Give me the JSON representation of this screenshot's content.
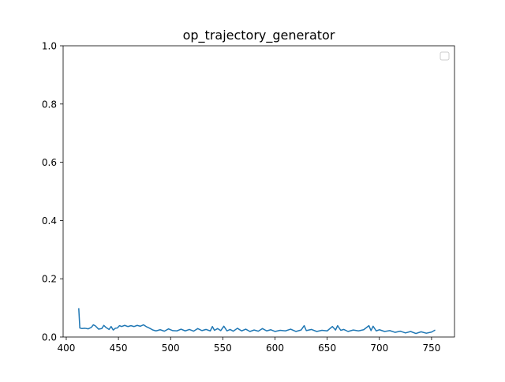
{
  "chart_data": {
    "type": "line",
    "title": "op_trajectory_generator",
    "xlabel": "",
    "ylabel": "",
    "xlim": [
      397,
      772
    ],
    "ylim": [
      0,
      1.0
    ],
    "xticks": [
      400,
      450,
      500,
      550,
      600,
      650,
      700,
      750
    ],
    "yticks": [
      0.0,
      0.2,
      0.4,
      0.6,
      0.8,
      1.0
    ],
    "xtick_labels": [
      "400",
      "450",
      "500",
      "550",
      "600",
      "650",
      "700",
      "750"
    ],
    "ytick_labels": [
      "0.0",
      "0.2",
      "0.4",
      "0.6",
      "0.8",
      "1.0"
    ],
    "grid": false,
    "legend": {
      "placement": "top-right",
      "entries": []
    },
    "series": [
      {
        "color": "#1f77b4",
        "x": [
          412,
          413,
          415,
          418,
          421,
          424,
          426,
          428,
          431,
          434,
          436,
          438,
          441,
          443,
          445,
          447,
          449,
          451,
          453,
          456,
          459,
          462,
          465,
          468,
          471,
          474,
          477,
          480,
          483,
          486,
          490,
          494,
          498,
          502,
          506,
          510,
          514,
          518,
          522,
          526,
          530,
          534,
          538,
          540,
          542,
          545,
          548,
          551,
          554,
          557,
          560,
          564,
          568,
          572,
          576,
          580,
          584,
          588,
          592,
          596,
          600,
          605,
          610,
          615,
          620,
          625,
          628,
          630,
          635,
          640,
          645,
          650,
          655,
          658,
          660,
          663,
          666,
          670,
          675,
          680,
          685,
          690,
          692,
          694,
          697,
          700,
          705,
          710,
          715,
          720,
          725,
          730,
          735,
          740,
          745,
          750,
          753
        ],
        "y": [
          0.097,
          0.031,
          0.029,
          0.03,
          0.028,
          0.033,
          0.042,
          0.038,
          0.027,
          0.029,
          0.04,
          0.033,
          0.026,
          0.036,
          0.024,
          0.03,
          0.031,
          0.039,
          0.036,
          0.04,
          0.036,
          0.039,
          0.036,
          0.04,
          0.037,
          0.042,
          0.035,
          0.03,
          0.024,
          0.021,
          0.025,
          0.02,
          0.028,
          0.022,
          0.021,
          0.027,
          0.021,
          0.026,
          0.02,
          0.029,
          0.022,
          0.026,
          0.021,
          0.036,
          0.023,
          0.029,
          0.022,
          0.037,
          0.021,
          0.026,
          0.02,
          0.03,
          0.021,
          0.027,
          0.019,
          0.024,
          0.02,
          0.029,
          0.021,
          0.025,
          0.019,
          0.023,
          0.021,
          0.027,
          0.019,
          0.024,
          0.039,
          0.022,
          0.026,
          0.019,
          0.023,
          0.021,
          0.036,
          0.024,
          0.039,
          0.023,
          0.026,
          0.019,
          0.024,
          0.021,
          0.025,
          0.039,
          0.022,
          0.037,
          0.021,
          0.025,
          0.019,
          0.022,
          0.016,
          0.02,
          0.014,
          0.019,
          0.012,
          0.018,
          0.013,
          0.017,
          0.023
        ]
      }
    ]
  }
}
